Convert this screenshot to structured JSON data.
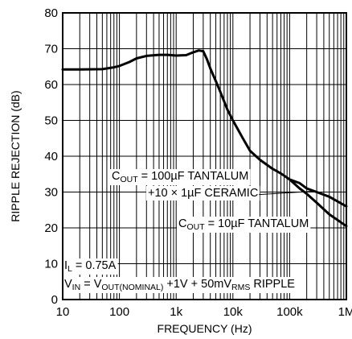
{
  "chart_data": {
    "type": "line",
    "xlabel": "FREQUENCY (Hz)",
    "ylabel": "RIPPLE REJECTION (dB)",
    "x_scale": "log",
    "xlim": [
      10,
      1000000
    ],
    "ylim": [
      0,
      80
    ],
    "grid": true,
    "x_tick_labels": [
      "10",
      "100",
      "1k",
      "10k",
      "100k",
      "1M"
    ],
    "y_ticks": [
      0,
      10,
      20,
      30,
      40,
      50,
      60,
      70,
      80
    ],
    "series": [
      {
        "x": [
          10,
          20,
          50,
          80,
          100,
          150,
          200,
          300,
          500,
          700,
          1000,
          1500,
          2000,
          2500,
          3000,
          3500,
          4000,
          5000,
          6000,
          8000,
          10000,
          15000,
          20000,
          30000,
          50000,
          70000,
          100000,
          150000,
          200000,
          300000,
          500000,
          1000000
        ],
        "y": [
          64.2,
          64.2,
          64.3,
          64.8,
          65.2,
          66.3,
          67.3,
          68.0,
          68.3,
          68.3,
          68.1,
          68.2,
          69.0,
          69.5,
          69.3,
          67.0,
          64.5,
          61.0,
          58.0,
          53.0,
          50.0,
          45.0,
          41.5,
          39.0,
          36.5,
          35.2,
          33.5,
          31.0,
          29.5,
          27.0,
          23.8,
          20.5
        ]
      },
      {
        "x": [
          100000,
          150000,
          200000,
          300000,
          500000,
          1000000
        ],
        "y": [
          33.5,
          32.5,
          31.0,
          30.0,
          28.7,
          26.0
        ]
      }
    ],
    "annotations": {
      "c100_a": "C",
      "c100_sub": "OUT",
      "c100_b": " = 100µF TANTALUM",
      "ceramic": "+10 × 1µF CERAMIC",
      "c10_a": "C",
      "c10_sub": "OUT",
      "c10_b": " = 10µF TANTALUM",
      "il_a": "I",
      "il_sub": "L",
      "il_b": " = 0.75A",
      "vin_1": "V",
      "vin_1_sub": "IN",
      "vin_2": " = V",
      "vin_2_sub": "OUT(NOMINAL)",
      "vin_3": " +1V + 50mV",
      "vin_3_sub": "RMS",
      "vin_4": " RIPPLE"
    }
  }
}
